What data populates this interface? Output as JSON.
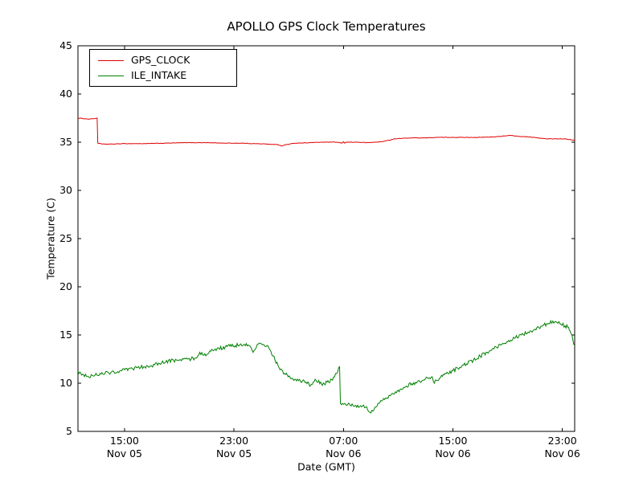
{
  "chart_data": {
    "type": "line",
    "title": "APOLLO GPS Clock Temperatures",
    "xlabel": "Date (GMT)",
    "ylabel": "Temperature (C)",
    "ylim": [
      5,
      45
    ],
    "yticks": [
      5,
      10,
      15,
      20,
      25,
      30,
      35,
      40,
      45
    ],
    "xlim_hours": [
      11.6,
      47.9
    ],
    "xticks": [
      {
        "hours": 15,
        "time": "15:00",
        "date": "Nov 05"
      },
      {
        "hours": 23,
        "time": "23:00",
        "date": "Nov 05"
      },
      {
        "hours": 31,
        "time": "07:00",
        "date": "Nov 06"
      },
      {
        "hours": 39,
        "time": "15:00",
        "date": "Nov 06"
      },
      {
        "hours": 47,
        "time": "23:00",
        "date": "Nov 06"
      }
    ],
    "grid": false,
    "legend_position": "upper-left",
    "series": [
      {
        "name": "GPS_CLOCK",
        "color": "#e00000",
        "noise": 0.025,
        "points": [
          [
            11.6,
            37.5
          ],
          [
            12.0,
            37.45
          ],
          [
            12.4,
            37.4
          ],
          [
            12.8,
            37.45
          ],
          [
            13.0,
            37.5
          ],
          [
            13.05,
            34.9
          ],
          [
            13.4,
            34.8
          ],
          [
            14.0,
            34.8
          ],
          [
            15.0,
            34.85
          ],
          [
            16.5,
            34.85
          ],
          [
            18.0,
            34.9
          ],
          [
            19.5,
            34.95
          ],
          [
            21.0,
            34.95
          ],
          [
            22.5,
            34.9
          ],
          [
            23.5,
            34.9
          ],
          [
            24.5,
            34.85
          ],
          [
            25.5,
            34.8
          ],
          [
            26.2,
            34.75
          ],
          [
            26.5,
            34.6
          ],
          [
            26.8,
            34.75
          ],
          [
            27.5,
            34.9
          ],
          [
            28.5,
            34.95
          ],
          [
            29.5,
            35.0
          ],
          [
            30.5,
            35.0
          ],
          [
            30.9,
            34.9
          ],
          [
            31.0,
            35.05
          ],
          [
            31.1,
            34.9
          ],
          [
            31.2,
            35.0
          ],
          [
            32.0,
            35.0
          ],
          [
            32.8,
            34.95
          ],
          [
            33.3,
            35.0
          ],
          [
            33.8,
            35.05
          ],
          [
            34.3,
            35.2
          ],
          [
            34.8,
            35.35
          ],
          [
            35.3,
            35.4
          ],
          [
            36.0,
            35.45
          ],
          [
            37.0,
            35.45
          ],
          [
            38.0,
            35.5
          ],
          [
            39.0,
            35.5
          ],
          [
            40.0,
            35.5
          ],
          [
            41.0,
            35.5
          ],
          [
            42.0,
            35.55
          ],
          [
            42.8,
            35.65
          ],
          [
            43.3,
            35.7
          ],
          [
            43.8,
            35.6
          ],
          [
            44.5,
            35.55
          ],
          [
            45.2,
            35.45
          ],
          [
            45.8,
            35.35
          ],
          [
            46.5,
            35.35
          ],
          [
            47.2,
            35.35
          ],
          [
            47.9,
            35.2
          ]
        ]
      },
      {
        "name": "ILE_INTAKE",
        "color": "#008000",
        "noise": 0.2,
        "points": [
          [
            11.6,
            11.2
          ],
          [
            11.8,
            11.05
          ],
          [
            12.0,
            10.9
          ],
          [
            12.3,
            10.7
          ],
          [
            12.7,
            10.75
          ],
          [
            13.2,
            11.0
          ],
          [
            14.0,
            11.1
          ],
          [
            14.8,
            11.3
          ],
          [
            15.6,
            11.5
          ],
          [
            16.4,
            11.7
          ],
          [
            17.2,
            11.9
          ],
          [
            18.0,
            12.2
          ],
          [
            18.8,
            12.4
          ],
          [
            19.6,
            12.5
          ],
          [
            20.2,
            12.6
          ],
          [
            20.5,
            13.2
          ],
          [
            20.8,
            12.9
          ],
          [
            21.3,
            13.3
          ],
          [
            21.9,
            13.6
          ],
          [
            22.5,
            13.8
          ],
          [
            23.1,
            13.9
          ],
          [
            23.7,
            14.0
          ],
          [
            24.1,
            13.9
          ],
          [
            24.4,
            13.2
          ],
          [
            24.7,
            14.0
          ],
          [
            25.0,
            14.1
          ],
          [
            25.4,
            13.9
          ],
          [
            25.7,
            13.3
          ],
          [
            26.0,
            12.4
          ],
          [
            26.3,
            11.6
          ],
          [
            26.7,
            11.0
          ],
          [
            27.1,
            10.6
          ],
          [
            27.5,
            10.4
          ],
          [
            28.0,
            10.2
          ],
          [
            28.6,
            9.8
          ],
          [
            29.0,
            10.3
          ],
          [
            29.4,
            9.9
          ],
          [
            29.8,
            10.1
          ],
          [
            30.2,
            10.3
          ],
          [
            30.5,
            11.0
          ],
          [
            30.65,
            11.6
          ],
          [
            30.72,
            11.7
          ],
          [
            30.78,
            7.9
          ],
          [
            31.3,
            7.75
          ],
          [
            31.9,
            7.7
          ],
          [
            32.4,
            7.65
          ],
          [
            32.7,
            7.55
          ],
          [
            33.0,
            6.9
          ],
          [
            33.15,
            7.1
          ],
          [
            33.3,
            7.5
          ],
          [
            33.6,
            7.9
          ],
          [
            34.0,
            8.3
          ],
          [
            34.4,
            8.7
          ],
          [
            34.8,
            9.1
          ],
          [
            35.2,
            9.4
          ],
          [
            35.6,
            9.7
          ],
          [
            36.0,
            9.95
          ],
          [
            36.4,
            10.15
          ],
          [
            36.8,
            10.3
          ],
          [
            37.2,
            10.5
          ],
          [
            37.5,
            10.65
          ],
          [
            37.65,
            10.0
          ],
          [
            37.8,
            10.3
          ],
          [
            38.1,
            10.6
          ],
          [
            38.5,
            11.0
          ],
          [
            39.0,
            11.3
          ],
          [
            39.5,
            11.65
          ],
          [
            40.0,
            12.0
          ],
          [
            40.5,
            12.4
          ],
          [
            41.0,
            12.8
          ],
          [
            41.5,
            13.2
          ],
          [
            42.0,
            13.55
          ],
          [
            42.5,
            13.95
          ],
          [
            43.0,
            14.3
          ],
          [
            43.5,
            14.65
          ],
          [
            44.0,
            15.0
          ],
          [
            44.5,
            15.3
          ],
          [
            45.0,
            15.6
          ],
          [
            45.5,
            15.9
          ],
          [
            46.0,
            16.2
          ],
          [
            46.3,
            16.45
          ],
          [
            46.6,
            16.3
          ],
          [
            46.9,
            16.1
          ],
          [
            47.2,
            15.95
          ],
          [
            47.45,
            15.8
          ],
          [
            47.65,
            15.1
          ],
          [
            47.9,
            13.9
          ]
        ]
      }
    ]
  }
}
